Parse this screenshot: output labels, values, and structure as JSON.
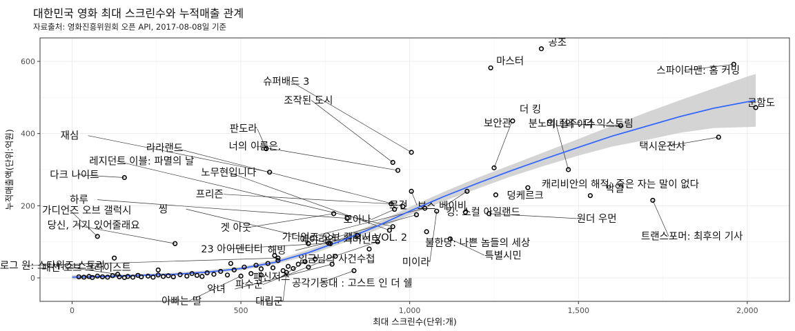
{
  "chart_data": {
    "type": "scatter",
    "title": "대한민국 영화 최대 스크린수와 누적매출 관계",
    "subtitle": "자료출처: 영화진흥위원회 오픈 API, 2017-08-08일 기준",
    "xlabel": "최대 스크린수(단위:개)",
    "ylabel": "누적매출액(단위:억원)",
    "xlim": [
      -95,
      2125
    ],
    "ylim": [
      -65,
      665
    ],
    "x_ticks": [
      0,
      500,
      1000,
      1500,
      2000
    ],
    "x_tick_labels": [
      "0",
      "500",
      "1,000",
      "1,500",
      "2,000"
    ],
    "y_ticks": [
      0,
      200,
      400,
      600
    ],
    "y_tick_labels": [
      "0",
      "200",
      "400",
      "600"
    ],
    "grid": true,
    "smooth_line": {
      "color": "#3366ff",
      "band_color": "#cccccc",
      "x": [
        0,
        100,
        200,
        300,
        400,
        500,
        600,
        700,
        800,
        900,
        1000,
        1100,
        1200,
        1300,
        1400,
        1500,
        1600,
        1700,
        1800,
        1900,
        2000,
        2025
      ],
      "y": [
        2,
        4,
        7,
        10,
        16,
        26,
        43,
        70,
        104,
        142,
        185,
        225,
        262,
        297,
        330,
        362,
        393,
        420,
        447,
        470,
        488,
        492
      ],
      "band_upper": [
        8,
        8,
        11,
        14,
        21,
        31,
        49,
        78,
        112,
        152,
        196,
        238,
        277,
        313,
        349,
        385,
        422,
        458,
        492,
        525,
        558,
        565
      ],
      "band_lower": [
        -4,
        0,
        3,
        6,
        11,
        21,
        37,
        62,
        96,
        132,
        174,
        212,
        247,
        281,
        311,
        339,
        364,
        382,
        402,
        415,
        418,
        419
      ]
    },
    "points": [
      {
        "x": 1390,
        "y": 635,
        "label": "공조"
      },
      {
        "x": 1240,
        "y": 582,
        "label": "마스터"
      },
      {
        "x": 1960,
        "y": 592,
        "label": "스파이더맨: 홈 커밍"
      },
      {
        "x": 2025,
        "y": 472,
        "label": "군함도"
      },
      {
        "x": 1305,
        "y": 435,
        "label": "더 킹"
      },
      {
        "x": 1625,
        "y": 422,
        "label": "미녀와 야수"
      },
      {
        "x": 1915,
        "y": 390,
        "label": "택시운전사"
      },
      {
        "x": 575,
        "y": 358,
        "label": "판도라"
      },
      {
        "x": 1005,
        "y": 348,
        "label": "슈퍼배드 3"
      },
      {
        "x": 950,
        "y": 320,
        "label": "조작된 도시"
      },
      {
        "x": 1250,
        "y": 305,
        "label": "보안관"
      },
      {
        "x": 585,
        "y": 293,
        "label": "재심"
      },
      {
        "x": 965,
        "y": 298,
        "label": "너의 이름은."
      },
      {
        "x": 1470,
        "y": 300,
        "label": "분노의 질주: 더 익스트림"
      },
      {
        "x": 1045,
        "y": 193,
        "label": "가디언즈 오브 갤럭시 VOL. 2"
      },
      {
        "x": 155,
        "y": 278,
        "label": "다크 나이트"
      },
      {
        "x": 1005,
        "y": 240,
        "label": "로건"
      },
      {
        "x": 1170,
        "y": 240,
        "label": "보스 베이비"
      },
      {
        "x": 980,
        "y": 198,
        "label": "라라랜드"
      },
      {
        "x": 1080,
        "y": 185,
        "label": "미이라"
      },
      {
        "x": 1350,
        "y": 250,
        "label": "캐리비안의 해적: 죽은 자는 말이 없다"
      },
      {
        "x": 945,
        "y": 205,
        "label": "프리즌"
      },
      {
        "x": 1255,
        "y": 230,
        "label": "덩케르크"
      },
      {
        "x": 955,
        "y": 190,
        "label": "모아나"
      },
      {
        "x": 1020,
        "y": 175,
        "label": "에이리언: 커버넌트"
      },
      {
        "x": 1720,
        "y": 215,
        "label": "트랜스포머: 최후의 기사"
      },
      {
        "x": 1535,
        "y": 228,
        "label": "박열"
      },
      {
        "x": 940,
        "y": 132,
        "label": "노무현입니다"
      },
      {
        "x": 950,
        "y": 142,
        "label": "레지던트 이블: 파멸의 날"
      },
      {
        "x": 1165,
        "y": 182,
        "label": "킹: 스컬 아일랜드"
      },
      {
        "x": 1235,
        "y": 178,
        "label": "원더 우먼"
      },
      {
        "x": 775,
        "y": 178,
        "label": "겟 아웃"
      },
      {
        "x": 815,
        "y": 165,
        "label": "하루"
      },
      {
        "x": 765,
        "y": 95,
        "label": "씽"
      },
      {
        "x": 760,
        "y": 96,
        "label": "23 아이덴티티"
      },
      {
        "x": 845,
        "y": 118,
        "label": "해빙"
      },
      {
        "x": 1050,
        "y": 128,
        "label": "불한당: 나쁜 놈들의 세상"
      },
      {
        "x": 1120,
        "y": 108,
        "label": "특별시민"
      },
      {
        "x": 75,
        "y": 115,
        "label": "가디언즈 오브 갤럭시"
      },
      {
        "x": 305,
        "y": 95,
        "label": "당신, 거기 있어줄래요"
      },
      {
        "x": 905,
        "y": 100,
        "label": "임금님의 사건수첩"
      },
      {
        "x": 610,
        "y": 55,
        "label": "로그 원: 스타워즈 스토리"
      },
      {
        "x": 780,
        "y": 60,
        "label": "파수꾼"
      },
      {
        "x": 770,
        "y": 38,
        "label": "악녀"
      },
      {
        "x": 690,
        "y": 45,
        "label": "패신저스"
      },
      {
        "x": 835,
        "y": 20,
        "label": "공각기동대 : 고스트 인 더 쉘"
      },
      {
        "x": 135,
        "y": 10,
        "label": "패션 오브 크라이스트"
      },
      {
        "x": 500,
        "y": 5,
        "label": "아빠는 딸"
      },
      {
        "x": 635,
        "y": 15,
        "label": "대립군"
      },
      {
        "x": 125,
        "y": 55
      },
      {
        "x": 20,
        "y": 3
      },
      {
        "x": 35,
        "y": 2
      },
      {
        "x": 50,
        "y": 4
      },
      {
        "x": 60,
        "y": 1
      },
      {
        "x": 75,
        "y": 5
      },
      {
        "x": 90,
        "y": 3
      },
      {
        "x": 105,
        "y": 2
      },
      {
        "x": 120,
        "y": 6
      },
      {
        "x": 140,
        "y": 3
      },
      {
        "x": 155,
        "y": 1
      },
      {
        "x": 165,
        "y": 4
      },
      {
        "x": 180,
        "y": 2
      },
      {
        "x": 195,
        "y": 7
      },
      {
        "x": 205,
        "y": 3
      },
      {
        "x": 225,
        "y": 5
      },
      {
        "x": 240,
        "y": 2
      },
      {
        "x": 255,
        "y": 8
      },
      {
        "x": 270,
        "y": 4
      },
      {
        "x": 285,
        "y": 6
      },
      {
        "x": 300,
        "y": 3
      },
      {
        "x": 320,
        "y": 9
      },
      {
        "x": 340,
        "y": 5
      },
      {
        "x": 355,
        "y": 12
      },
      {
        "x": 370,
        "y": 7
      },
      {
        "x": 385,
        "y": 4
      },
      {
        "x": 400,
        "y": 14
      },
      {
        "x": 420,
        "y": 10
      },
      {
        "x": 440,
        "y": 18
      },
      {
        "x": 460,
        "y": 8
      },
      {
        "x": 480,
        "y": 22
      },
      {
        "x": 510,
        "y": 30
      },
      {
        "x": 530,
        "y": 12
      },
      {
        "x": 545,
        "y": 35
      },
      {
        "x": 560,
        "y": 25
      },
      {
        "x": 580,
        "y": 40
      },
      {
        "x": 595,
        "y": 28
      },
      {
        "x": 610,
        "y": 48
      },
      {
        "x": 625,
        "y": 20
      },
      {
        "x": 640,
        "y": 32
      },
      {
        "x": 655,
        "y": 26
      },
      {
        "x": 670,
        "y": 38
      },
      {
        "x": 700,
        "y": 30
      },
      {
        "x": 720,
        "y": 52
      },
      {
        "x": 600,
        "y": 62
      },
      {
        "x": 560,
        "y": 8
      },
      {
        "x": 470,
        "y": 40
      },
      {
        "x": 255,
        "y": 22
      },
      {
        "x": 880,
        "y": 80
      },
      {
        "x": 700,
        "y": 95
      }
    ]
  }
}
